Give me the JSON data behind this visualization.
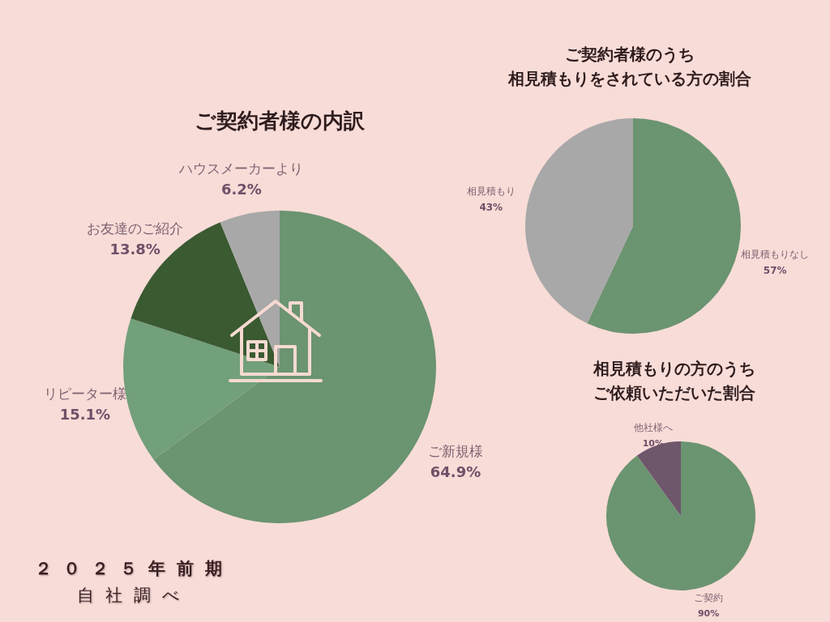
{
  "chart_data": [
    {
      "type": "pie",
      "title": "ご契約者様の内訳",
      "categories": [
        "ご新規様",
        "リピーター様",
        "お友達のご紹介",
        "ハウスメーカーより"
      ],
      "values": [
        64.9,
        15.1,
        13.8,
        6.2
      ],
      "value_labels": [
        "64.9%",
        "15.1%",
        "13.8%",
        "6.2%"
      ],
      "colors": [
        "#6b9471",
        "#72a07a",
        "#3a5a32",
        "#a8a8a8"
      ],
      "annotations": [
        "２０２５年前期",
        "自社調べ"
      ]
    },
    {
      "type": "pie",
      "title": "ご契約者様のうち",
      "subtitle": "相見積もりをされている方の割合",
      "categories": [
        "相見積もりなし",
        "相見積もり"
      ],
      "values": [
        57,
        43
      ],
      "value_labels": [
        "57%",
        "43%"
      ],
      "colors": [
        "#6b9471",
        "#a8a8a8"
      ]
    },
    {
      "type": "pie",
      "title": "相見積もりの方のうち",
      "subtitle": "ご依頼いただいた割合",
      "categories": [
        "ご契約",
        "他社様へ"
      ],
      "values": [
        90,
        10
      ],
      "value_labels": [
        "90%",
        "10%"
      ],
      "colors": [
        "#6b9471",
        "#6e566b"
      ]
    }
  ]
}
